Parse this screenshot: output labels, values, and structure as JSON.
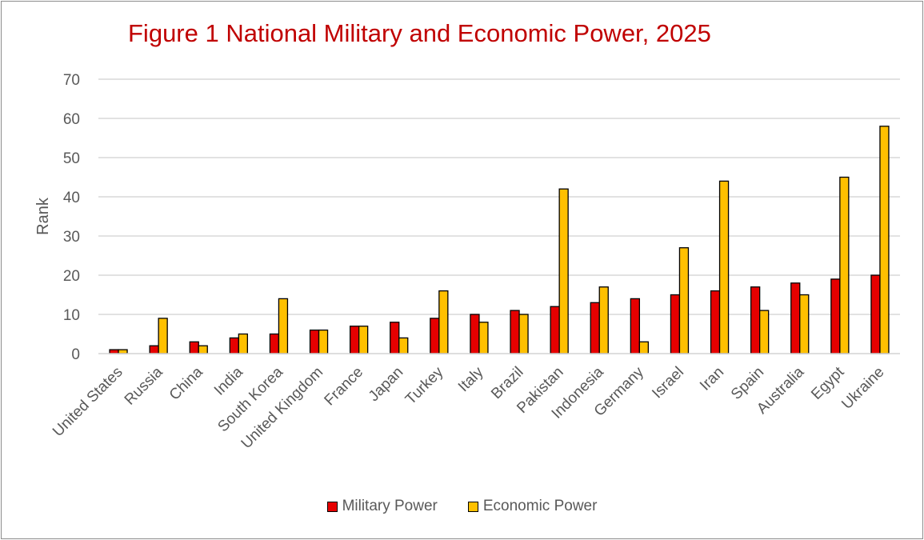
{
  "chart_data": {
    "type": "bar",
    "title": "Figure 1 National Military and Economic Power, 2025",
    "xlabel": "",
    "ylabel": "Rank",
    "ylim": [
      0,
      70
    ],
    "yticks": [
      0,
      10,
      20,
      30,
      40,
      50,
      60,
      70
    ],
    "grid": true,
    "legend_position": "bottom",
    "categories": [
      "United States",
      "Russia",
      "China",
      "India",
      "South Korea",
      "United Kingdom",
      "France",
      "Japan",
      "Turkey",
      "Italy",
      "Brazil",
      "Pakistan",
      "Indonesia",
      "Germany",
      "Israel",
      "Iran",
      "Spain",
      "Australia",
      "Egypt",
      "Ukraine"
    ],
    "series": [
      {
        "name": "Military Power",
        "color": "#e60000",
        "values": [
          1,
          2,
          3,
          4,
          5,
          6,
          7,
          8,
          9,
          10,
          11,
          12,
          13,
          14,
          15,
          16,
          17,
          18,
          19,
          20
        ]
      },
      {
        "name": "Economic Power",
        "color": "#ffc000",
        "values": [
          1,
          9,
          2,
          5,
          14,
          6,
          7,
          4,
          16,
          8,
          10,
          42,
          17,
          3,
          27,
          44,
          11,
          15,
          45,
          58
        ]
      }
    ]
  }
}
